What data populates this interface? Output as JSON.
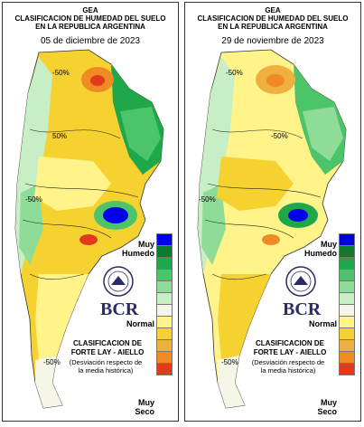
{
  "common": {
    "title_line1": "GEA",
    "title_line2": "CLASIFICACION DE HUMEDAD DEL SUELO",
    "title_line3": "EN LA REPUBLICA ARGENTINA",
    "legend_top": "Muy\nHumedo",
    "legend_mid": "Normal",
    "legend_bottom": "Muy\nSeco",
    "classification": "CLASIFICACION DE\nFORTE LAY - AIELLO",
    "deviation": "(Desviación respecto de\nla media histórica)",
    "logo": "BCR",
    "seal_text": "BOLSA DE COMERCIO DE ROSARIO",
    "legend_colors": [
      "#0000ee",
      "#0a7a2e",
      "#1fa84a",
      "#4cc46a",
      "#8fdc98",
      "#c8eec6",
      "#f5f5e8",
      "#fff38a",
      "#f5d230",
      "#f0b040",
      "#f08a25",
      "#e23a1a"
    ]
  },
  "maps": [
    {
      "date": "05 de diciembre de 2023",
      "contour_label_n": "-50%",
      "contour_label_c": "50%",
      "contour_label_w": "-50%",
      "contour_label_s": "-50%"
    },
    {
      "date": "29 de noviembre de 2023",
      "contour_label_n": "-50%",
      "contour_label_c": "-50%",
      "contour_label_w": "-50%",
      "contour_label_s": "-50%"
    }
  ]
}
